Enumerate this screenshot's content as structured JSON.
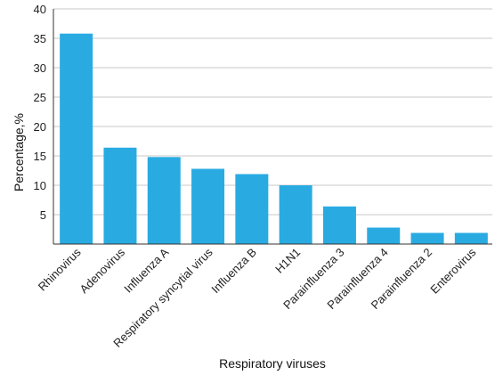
{
  "chart_data": {
    "type": "bar",
    "categories": [
      "Rhinovirus",
      "Adenovirus",
      "Influenza A",
      "Respiratory syncytial virus",
      "Influenza B",
      "H1N1",
      "Parainfluenza 3",
      "Parainfluenza 4",
      "Parainfluenza 2",
      "Enterovirus"
    ],
    "values": [
      35.8,
      16.4,
      14.8,
      12.8,
      11.9,
      10.0,
      6.4,
      2.8,
      1.9,
      1.9
    ],
    "xlabel": "Respiratory viruses",
    "ylabel": "Percentage,%",
    "ylim": [
      0,
      40
    ],
    "yticks": [
      "5",
      "10",
      "15",
      "20",
      "25",
      "30",
      "35",
      "40"
    ],
    "grid": true,
    "bar_color": "#29abe2"
  }
}
